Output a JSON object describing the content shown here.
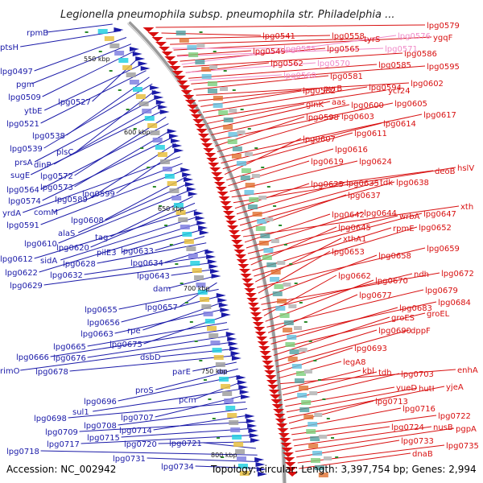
{
  "header": {
    "title": "Legionella pneumophila subsp. pneumophila str. Philadelphia ..."
  },
  "footer": {
    "accession": "Accession: NC_002942",
    "stats": "Topology: circular; Length: 3,397,754 bp; Genes: 2,994"
  },
  "colors": {
    "left_strand": "#1a1aa8",
    "right_strand": "#d81010",
    "pseudo": "#f08ac8",
    "backbone": "#9a9a9a"
  },
  "scale_marks": [
    "550 kbp",
    "600 kbp",
    "650 kbp",
    "700 kbp",
    "750 kbp",
    "800 kbp"
  ],
  "left_genes": [
    "rpmB",
    "ptsH",
    "lpg0497",
    "pgm",
    "lpg0509",
    "lpg0527",
    "ytbE",
    "lpg0521",
    "lpg0538",
    "lpg0539",
    "plsC",
    "prsA",
    "dinP",
    "sugE",
    "lpg0572",
    "lpg0564",
    "lpg0573",
    "lpg0574",
    "lpg0589",
    "lpg0599",
    "yrdA",
    "comM",
    "lpg0591",
    "lpg0608",
    "alaS",
    "lpg0610",
    "tag",
    "lpg0620",
    "lpg0612",
    "sidA",
    "lpg0622",
    "pilE3",
    "lpg0633",
    "lpg0628",
    "lpg0634",
    "lpg0632",
    "lpg0629",
    "lpg0643",
    "dam",
    "lpg0657",
    "lpg0655",
    "lpg0656",
    "rpe",
    "lpg0663",
    "lpg0675",
    "lpg0665",
    "lpg0666",
    "lpg0676",
    "rimO",
    "dsbD",
    "lpg0678",
    "parE",
    "proS",
    "lpg0696",
    "pcm",
    "sul1",
    "lpg0707",
    "lpg0698",
    "lpg0708",
    "lpg0714",
    "lpg0709",
    "lpg0715",
    "lpg0717",
    "lpg0720",
    "lpg0721",
    "lpg0718",
    "lpg0731",
    "lpg0734"
  ],
  "right_genes": [
    "lpg0579",
    "lpg0541",
    "lpg0558",
    "tyrS",
    "ygqF",
    "lpg0549",
    "lpg0565",
    "lpg0586",
    "lpg0562",
    "lpg0585",
    "lpg0595",
    "lpg0581",
    "lpg0602",
    "lpg0582",
    "pyrB",
    "lpg0594",
    "ycf24",
    "glnK",
    "aas",
    "lpg0600",
    "lpg0605",
    "lpg0598",
    "lpg0603",
    "lpg0617",
    "lpg0614",
    "lpg0611",
    "lpg0607",
    "lpg0616",
    "lpg0619",
    "lpg0624",
    "deoB",
    "hslV",
    "lpg0625",
    "lpg0635",
    "tdk",
    "lpg0638",
    "lpg0637",
    "xth",
    "lpg0642",
    "lpg0644",
    "wrbA",
    "lpg0647",
    "lpg0645",
    "rpmE",
    "lpg0652",
    "xthA1",
    "lpg0659",
    "lpg0653",
    "lpg0658",
    "lpg0672",
    "ndh",
    "lpg0662",
    "lpg0670",
    "lpg0679",
    "lpg0677",
    "lpg0684",
    "lpg0683",
    "groEL",
    "groES",
    "lpg0690",
    "dppF",
    "lpg0693",
    "legA8",
    "enhA",
    "kbl",
    "tdh",
    "lpg0703",
    "yueD",
    "hutI",
    "yjeA",
    "lpg0713",
    "lpg0716",
    "lpg0722",
    "lpg0724",
    "nusB",
    "pgpA",
    "lpg0733",
    "lpg0735",
    "dnaB"
  ],
  "pseudo_genes": [
    "lpg0555",
    "lpg0571",
    "lpg0576",
    "lpg0570",
    "lpg0569"
  ]
}
